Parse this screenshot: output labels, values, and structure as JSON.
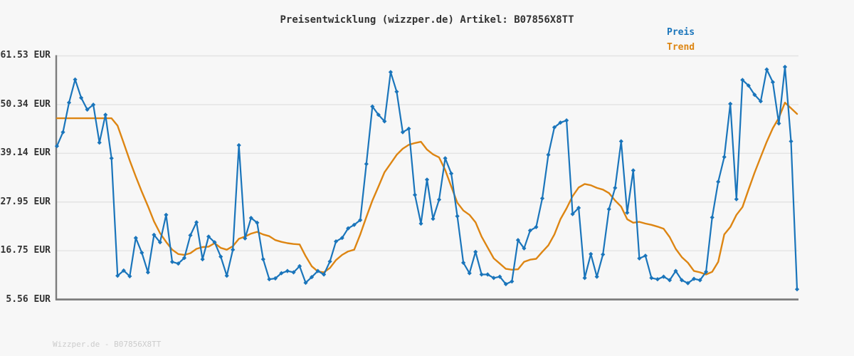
{
  "window": {
    "background": "#f7f7f7"
  },
  "header": {
    "title": "Preisentwicklung (wizzper.de) Artikel: B07856X8TT"
  },
  "legend": {
    "items": [
      {
        "label": "Preis",
        "color": "#1a75bb"
      },
      {
        "label": "Trend",
        "color": "#dd8512"
      }
    ]
  },
  "footer": {
    "watermark": "Wizzper.de - B07856X8TT"
  },
  "chart_data": {
    "type": "line",
    "title": "Preisentwicklung (wizzper.de) Artikel: B07856X8TT",
    "xlabel": "",
    "ylabel": "EUR",
    "x_tick_labels": [],
    "ytick_values": [
      61.53,
      50.34,
      39.14,
      27.95,
      16.75,
      5.56
    ],
    "ytick_labels": [
      "61.53 EUR",
      "50.34 EUR",
      "39.14 EUR",
      "27.95 EUR",
      "16.75 EUR",
      "5.56 EUR"
    ],
    "ylim": [
      5.56,
      61.53
    ],
    "grid": true,
    "grid_color": "#e3e3e3",
    "axis_color": "#7d7d7d",
    "legend_position": "top-right",
    "series": [
      {
        "name": "Preis",
        "color": "#1a75bb",
        "marker": "diamond",
        "line_width": 2.2,
        "values": [
          40.8,
          44.0,
          50.8,
          56.1,
          51.9,
          49.2,
          50.3,
          41.6,
          48.0,
          38.0,
          11.0,
          12.2,
          10.9,
          19.7,
          16.3,
          11.8,
          20.4,
          18.7,
          25.0,
          14.2,
          13.8,
          15.1,
          20.3,
          23.3,
          14.8,
          20.0,
          18.7,
          15.4,
          11.0,
          17.0,
          41.0,
          19.6,
          24.3,
          23.2,
          14.8,
          10.2,
          10.4,
          11.6,
          12.1,
          11.8,
          13.2,
          9.4,
          10.7,
          12.1,
          11.3,
          14.3,
          18.9,
          19.7,
          21.9,
          22.7,
          23.8,
          36.7,
          49.9,
          48.0,
          46.5,
          57.8,
          53.3,
          44.0,
          44.8,
          29.6,
          23.0,
          33.1,
          24.1,
          28.5,
          38.0,
          34.5,
          24.7,
          14.0,
          11.6,
          16.5,
          11.3,
          11.3,
          10.5,
          10.8,
          9.1,
          9.7,
          19.2,
          17.3,
          21.4,
          22.2,
          28.8,
          38.8,
          45.1,
          46.2,
          46.7,
          25.2,
          26.6,
          10.5,
          16.0,
          10.8,
          15.9,
          26.3,
          31.2,
          41.9,
          25.5,
          35.2,
          15.0,
          15.6,
          10.5,
          10.2,
          10.8,
          10.0,
          12.1,
          10.0,
          9.3,
          10.3,
          10.0,
          11.9,
          24.4,
          32.6,
          38.3,
          50.5,
          28.6,
          56.0,
          54.7,
          52.6,
          51.1,
          58.4,
          55.5,
          46.0,
          59.0,
          41.9,
          7.9
        ]
      },
      {
        "name": "Trend",
        "color": "#dd8512",
        "marker": "none",
        "line_width": 2.4,
        "values": [
          47.2,
          47.2,
          47.2,
          47.2,
          47.2,
          47.2,
          47.2,
          47.2,
          47.2,
          47.2,
          45.5,
          41.5,
          37.5,
          33.8,
          30.3,
          27.0,
          23.5,
          20.8,
          18.8,
          17.0,
          16.0,
          15.8,
          16.2,
          17.2,
          17.6,
          17.7,
          18.5,
          17.4,
          17.0,
          17.8,
          19.5,
          20.0,
          20.7,
          21.1,
          20.5,
          20.1,
          19.2,
          18.8,
          18.5,
          18.3,
          18.2,
          15.5,
          13.2,
          12.0,
          11.8,
          12.8,
          14.6,
          15.8,
          16.6,
          17.0,
          20.5,
          24.5,
          28.3,
          31.5,
          34.8,
          36.8,
          38.8,
          40.2,
          41.1,
          41.5,
          41.8,
          40.0,
          38.9,
          38.2,
          35.3,
          31.5,
          27.8,
          26.0,
          25.0,
          23.3,
          20.0,
          17.5,
          15.0,
          13.8,
          12.6,
          12.4,
          12.5,
          14.2,
          14.7,
          14.9,
          16.5,
          18.0,
          20.5,
          24.0,
          26.5,
          29.3,
          31.3,
          32.1,
          31.8,
          31.2,
          30.8,
          30.0,
          28.3,
          26.9,
          24.0,
          23.2,
          23.4,
          23.0,
          22.7,
          22.3,
          21.8,
          19.9,
          17.2,
          15.3,
          14.0,
          12.1,
          11.8,
          11.3,
          11.9,
          14.2,
          20.5,
          22.2,
          25.0,
          26.8,
          30.8,
          34.7,
          38.3,
          41.8,
          44.9,
          47.3,
          50.8,
          49.5,
          48.2
        ]
      }
    ]
  }
}
